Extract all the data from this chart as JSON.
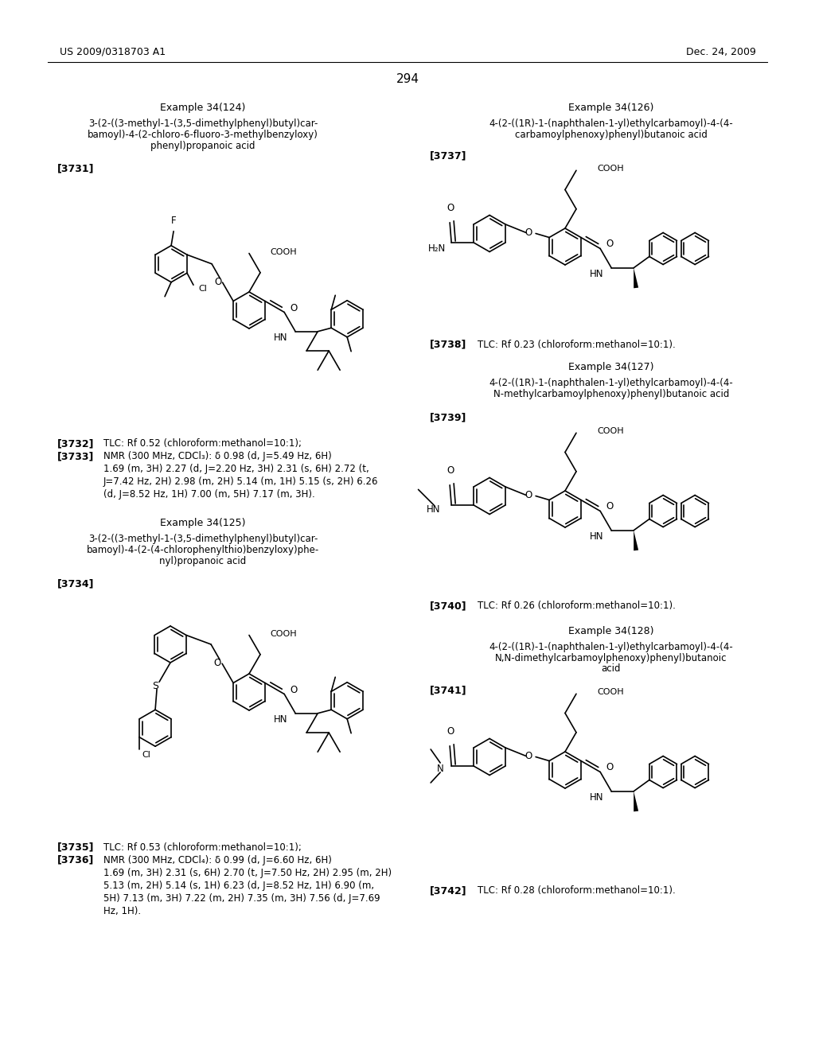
{
  "page_number": "294",
  "header_left": "US 2009/0318703 A1",
  "header_right": "Dec. 24, 2009",
  "background_color": "#ffffff",
  "text_color": "#000000"
}
